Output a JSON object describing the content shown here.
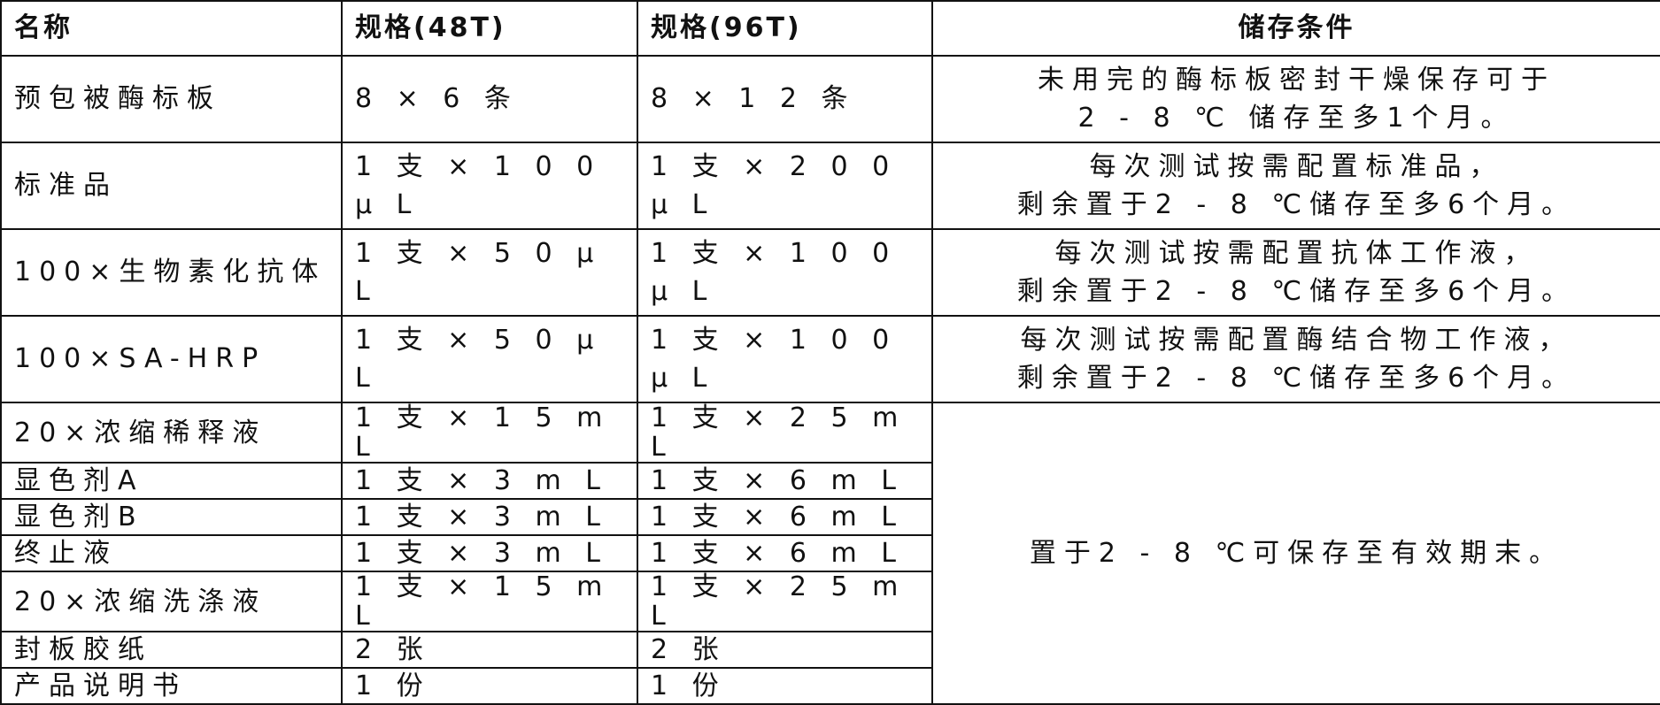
{
  "headers": [
    "名称",
    "规格(48T)",
    "规格(96T)",
    "储存条件"
  ],
  "rows": [
    {
      "name": "预包被酶标板",
      "spec48": "8 × 6 条",
      "spec96": "8 × 1 2 条",
      "storage": [
        "未用完的酶标板密封干燥保存可于",
        "2 - 8 ℃ 储存至多1个月。"
      ]
    },
    {
      "name": "标准品",
      "spec48": "1 支 × 1 0 0 µ L",
      "spec96": "1 支 × 2 0 0 µ L",
      "storage": [
        "每次测试按需配置标准品，",
        "剩余置于2 - 8 ℃储存至多6个月。"
      ]
    },
    {
      "name": "100×生物素化抗体",
      "spec48": "1 支 × 5 0 µ L",
      "spec96": "1 支 × 1 0 0 µ L",
      "storage": [
        "每次测试按需配置抗体工作液，",
        "剩余置于2 - 8 ℃储存至多6个月。"
      ]
    },
    {
      "name": "100×SA-HRP",
      "spec48": "1 支 × 5 0 µ L",
      "spec96": "1 支 × 1 0 0 µ L",
      "storage": [
        "每次测试按需配置酶结合物工作液，",
        "剩余置于2 - 8 ℃储存至多6个月。"
      ]
    },
    {
      "name": "20×浓缩稀释液",
      "spec48": "1 支 × 1 5 m L",
      "spec96": "1 支 × 2 5 m L"
    },
    {
      "name": "显色剂A",
      "spec48": "1 支 × 3 m L",
      "spec96": "1 支 × 6 m L"
    },
    {
      "name": "显色剂B",
      "spec48": "1 支 × 3 m L",
      "spec96": "1 支 × 6 m L"
    },
    {
      "name": "终止液",
      "spec48": "1 支 × 3 m L",
      "spec96": "1 支 × 6 m L"
    },
    {
      "name": "20×浓缩洗涤液",
      "spec48": "1 支 × 1 5 m L",
      "spec96": "1 支 × 2 5 m L"
    },
    {
      "name": "封板胶纸",
      "spec48": "2 张",
      "spec96": "2 张"
    },
    {
      "name": "产品说明书",
      "spec48": "1 份",
      "spec96": "1 份"
    }
  ],
  "shared_storage": "置于2 - 8 ℃可保存至有效期末。"
}
